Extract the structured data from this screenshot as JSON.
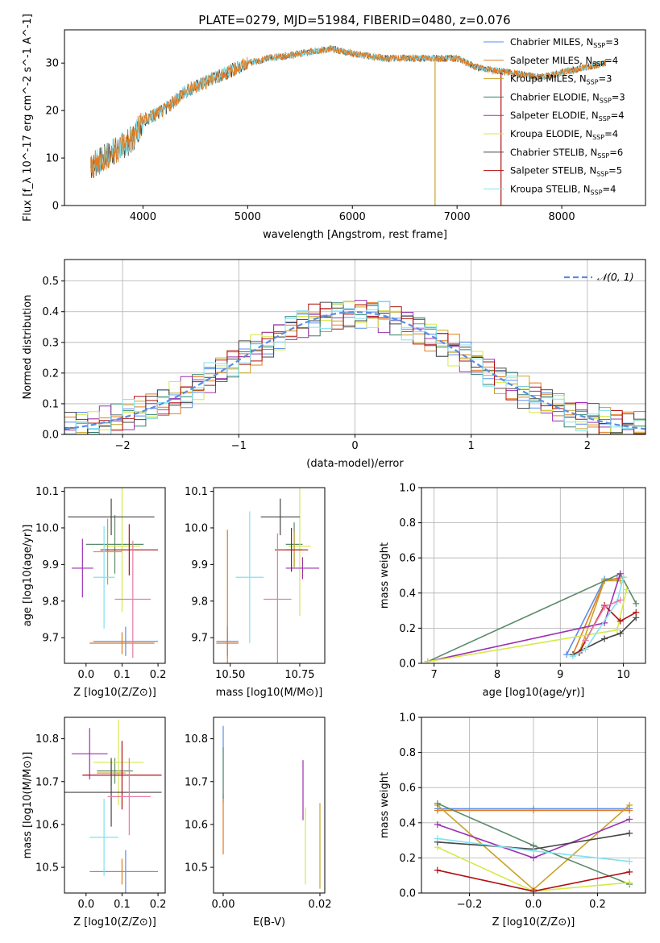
{
  "page_title": "PLATE=0279, MJD=51984, FIBERID=0480, z=0.076",
  "colors": {
    "c1": "#5b8def",
    "c2": "#e07b20",
    "c3": "#c9a227",
    "c4": "#2f7f6f",
    "c5": "#9b30b0",
    "c6": "#d6e84a",
    "c7": "#444444",
    "c8": "#b01010",
    "c9": "#7fe3f0",
    "grid": "#b0b0b0",
    "gauss": "#5b8ddf",
    "pink": "#e87aa8",
    "green": "#5a8a6a"
  },
  "chart_data": [
    {
      "type": "line",
      "title": "PLATE=0279, MJD=51984, FIBERID=0480, z=0.076",
      "xlabel": "wavelength [Angstrom, rest frame]",
      "ylabel": "Flux [f_λ 10^-17 erg cm^-2 s^-1 A^-1]",
      "xlim": [
        3250,
        8800
      ],
      "ylim": [
        0,
        37
      ],
      "xticks": [
        "4000",
        "5000",
        "6000",
        "7000",
        "8000"
      ],
      "yticks": [
        "0",
        "10",
        "20",
        "30"
      ],
      "grid": false,
      "legend_position": "top-right",
      "spectrum_x": [
        3500,
        3700,
        3900,
        4000,
        4200,
        4400,
        4600,
        4800,
        5000,
        5200,
        5500,
        5800,
        6000,
        6300,
        6600,
        7000,
        7200,
        7500,
        7800,
        8000,
        8200,
        8400
      ],
      "spectrum_y": [
        8,
        11,
        14,
        18,
        20,
        24,
        26,
        28,
        30,
        31,
        32,
        33,
        32,
        31,
        31,
        31,
        29,
        28,
        27,
        28,
        29,
        30
      ],
      "series": [
        {
          "name": "Chabrier MILES, N",
          "sub": "SSP",
          "suffix": "=3"
        },
        {
          "name": "Salpeter MILES, N",
          "sub": "SSP",
          "suffix": "=4"
        },
        {
          "name": "Kroupa MILES, N",
          "sub": "SSP",
          "suffix": "=3"
        },
        {
          "name": "Chabrier ELODIE, N",
          "sub": "SSP",
          "suffix": "=3"
        },
        {
          "name": "Salpeter ELODIE, N",
          "sub": "SSP",
          "suffix": "=4"
        },
        {
          "name": "Kroupa ELODIE, N",
          "sub": "SSP",
          "suffix": "=4"
        },
        {
          "name": "Chabrier STELIB, N",
          "sub": "SSP",
          "suffix": "=6"
        },
        {
          "name": "Salpeter STELIB, N",
          "sub": "SSP",
          "suffix": "=5"
        },
        {
          "name": "Kroupa STELIB, N",
          "sub": "SSP",
          "suffix": "=4"
        }
      ]
    },
    {
      "type": "area",
      "xlabel": "(data-model)/error",
      "ylabel": "Normed distribution",
      "xlim": [
        -2.5,
        2.5
      ],
      "ylim": [
        0,
        0.57
      ],
      "xticks": [
        "−2",
        "−1",
        "0",
        "1",
        "2"
      ],
      "yticks": [
        "0.0",
        "0.1",
        "0.2",
        "0.3",
        "0.4",
        "0.5"
      ],
      "grid": true,
      "legend_position": "top-right",
      "legend_label": "𝒩(0, 1)"
    },
    {
      "type": "scatter",
      "xlabel": "Z [log10(Z/Z⊙)]",
      "ylabel": "age [log10(age/yr)]",
      "xlim": [
        -0.06,
        0.22
      ],
      "ylim": [
        9.63,
        10.11
      ],
      "xticks": [
        "0.0",
        "0.1",
        "0.2"
      ],
      "yticks": [
        "9.7",
        "9.8",
        "9.9",
        "10.0",
        "10.1"
      ],
      "points": [
        {
          "x": 0.11,
          "y": 9.69,
          "xerr": 0.09,
          "yerr": 0.04
        },
        {
          "x": 0.1,
          "y": 9.685,
          "xerr": 0.09,
          "yerr": 0.03
        },
        {
          "x": 0.08,
          "y": 9.955,
          "xerr": 0.08,
          "yerr": 0.08
        },
        {
          "x": 0.1,
          "y": 9.95,
          "xerr": 0.05,
          "yerr": 0.18
        },
        {
          "x": -0.01,
          "y": 9.89,
          "xerr": 0.03,
          "yerr": 0.08
        },
        {
          "x": 0.06,
          "y": 9.935,
          "xerr": 0.04,
          "yerr": 0.09
        },
        {
          "x": 0.07,
          "y": 10.03,
          "xerr": 0.12,
          "yerr": 0.05
        },
        {
          "x": 0.12,
          "y": 9.94,
          "xerr": 0.08,
          "yerr": 0.07
        },
        {
          "x": 0.05,
          "y": 9.865,
          "xerr": 0.03,
          "yerr": 0.14
        },
        {
          "x": 0.13,
          "y": 9.805,
          "xerr": 0.05,
          "yerr": 0.16
        }
      ]
    },
    {
      "type": "scatter",
      "xlabel": "mass [log10(M/M⊙)]",
      "ylabel": "",
      "xlim": [
        10.44,
        10.84
      ],
      "ylim": [
        9.63,
        10.11
      ],
      "xticks": [
        "10.50",
        "10.75"
      ],
      "yticks": [
        "9.7",
        "9.8",
        "9.9",
        "10.0",
        "10.1"
      ],
      "points": [
        {
          "x": 10.49,
          "y": 9.69,
          "xerr": 0.04,
          "yerr": 0.04
        },
        {
          "x": 10.49,
          "y": 9.685,
          "xerr": 0.04,
          "yerr": 0.31
        },
        {
          "x": 10.73,
          "y": 9.955,
          "xerr": 0.03,
          "yerr": 0.06
        },
        {
          "x": 10.75,
          "y": 9.95,
          "xerr": 0.04,
          "yerr": 0.19
        },
        {
          "x": 10.76,
          "y": 9.89,
          "xerr": 0.06,
          "yerr": 0.03
        },
        {
          "x": 10.73,
          "y": 9.94,
          "xerr": 0.03,
          "yerr": 0.05
        },
        {
          "x": 10.68,
          "y": 10.03,
          "xerr": 0.07,
          "yerr": 0.05
        },
        {
          "x": 10.72,
          "y": 9.94,
          "xerr": 0.06,
          "yerr": 0.06
        },
        {
          "x": 10.57,
          "y": 9.865,
          "xerr": 0.05,
          "yerr": 0.18
        },
        {
          "x": 10.67,
          "y": 9.805,
          "xerr": 0.05,
          "yerr": 0.18
        }
      ]
    },
    {
      "type": "line",
      "xlabel": "age [log10(age/yr)]",
      "ylabel": "mass weight",
      "xlim": [
        6.8,
        10.35
      ],
      "ylim": [
        0,
        1
      ],
      "xticks": [
        "7",
        "8",
        "9",
        "10"
      ],
      "yticks": [
        "0.0",
        "0.2",
        "0.4",
        "0.6",
        "0.8",
        "1.0"
      ],
      "grid": true,
      "series": [
        {
          "x": [
            9.1,
            9.7,
            9.9
          ],
          "y": [
            0.05,
            0.48,
            0.48
          ]
        },
        {
          "x": [
            9.2,
            9.7,
            10.0
          ],
          "y": [
            0.05,
            0.47,
            0.49
          ]
        },
        {
          "x": [
            9.3,
            9.7,
            9.95
          ],
          "y": [
            0.06,
            0.47,
            0.47
          ]
        },
        {
          "x": [
            6.9,
            9.95,
            10.2
          ],
          "y": [
            0.01,
            0.51,
            0.34
          ]
        },
        {
          "x": [
            6.9,
            9.7,
            9.95
          ],
          "y": [
            0.01,
            0.23,
            0.51
          ]
        },
        {
          "x": [
            6.9,
            9.9,
            10.05
          ],
          "y": [
            0.01,
            0.19,
            0.42
          ]
        },
        {
          "x": [
            9.2,
            9.7,
            9.95,
            10.2
          ],
          "y": [
            0.05,
            0.14,
            0.17,
            0.26
          ]
        },
        {
          "x": [
            9.3,
            9.7,
            9.95,
            10.2
          ],
          "y": [
            0.06,
            0.33,
            0.24,
            0.29
          ]
        },
        {
          "x": [
            9.2,
            9.4,
            9.9,
            10.0
          ],
          "y": [
            0.04,
            0.08,
            0.35,
            0.49
          ]
        },
        {
          "x": [
            9.4,
            9.7,
            9.95
          ],
          "y": [
            0.13,
            0.32,
            0.36
          ]
        }
      ]
    },
    {
      "type": "scatter",
      "xlabel": "Z [log10(Z/Z⊙)]",
      "ylabel": "mass [log10(M/M⊙)]",
      "xlim": [
        -0.06,
        0.22
      ],
      "ylim": [
        10.44,
        10.85
      ],
      "xticks": [
        "0.0",
        "0.1",
        "0.2"
      ],
      "yticks": [
        "10.5",
        "10.6",
        "10.7",
        "10.8"
      ],
      "points": [
        {
          "x": 0.11,
          "y": 10.49,
          "xerr": 0.09,
          "yerr": 0.05
        },
        {
          "x": 0.1,
          "y": 10.49,
          "xerr": 0.09,
          "yerr": 0.03
        },
        {
          "x": 0.08,
          "y": 10.725,
          "xerr": 0.05,
          "yerr": 0.03
        },
        {
          "x": 0.09,
          "y": 10.745,
          "xerr": 0.07,
          "yerr": 0.1
        },
        {
          "x": 0.01,
          "y": 10.765,
          "xerr": 0.05,
          "yerr": 0.06
        },
        {
          "x": 0.07,
          "y": 10.72,
          "xerr": 0.04,
          "yerr": 0.03
        },
        {
          "x": 0.07,
          "y": 10.675,
          "xerr": 0.14,
          "yerr": 0.08
        },
        {
          "x": 0.1,
          "y": 10.715,
          "xerr": 0.11,
          "yerr": 0.08
        },
        {
          "x": 0.05,
          "y": 10.57,
          "xerr": 0.04,
          "yerr": 0.09
        },
        {
          "x": 0.12,
          "y": 10.665,
          "xerr": 0.06,
          "yerr": 0.09
        }
      ]
    },
    {
      "type": "scatter",
      "xlabel": "E(B-V)",
      "ylabel": "",
      "xlim": [
        -0.002,
        0.021
      ],
      "ylim": [
        10.44,
        10.85
      ],
      "xticks": [
        "0.00",
        "0.02"
      ],
      "yticks": [
        "10.5",
        "10.6",
        "10.7",
        "10.8"
      ],
      "points": [
        {
          "x": 0.0,
          "y": 10.74,
          "xerr": 0,
          "yerr": 0.09
        },
        {
          "x": 0.0,
          "y": 10.6,
          "xerr": 0,
          "yerr": 0.07
        },
        {
          "x": 0.0,
          "y": 10.72,
          "xerr": 0,
          "yerr": 0.06
        },
        {
          "x": 0.017,
          "y": 10.55,
          "xerr": 0,
          "yerr": 0.09
        },
        {
          "x": 0.0165,
          "y": 10.68,
          "xerr": 0,
          "yerr": 0.07
        },
        {
          "x": 0.02,
          "y": 10.55,
          "xerr": 0,
          "yerr": 0.1
        }
      ]
    },
    {
      "type": "line",
      "xlabel": "Z [log10(Z/Z⊙)]",
      "ylabel": "mass weight",
      "xlim": [
        -0.35,
        0.35
      ],
      "ylim": [
        0,
        1
      ],
      "xticks": [
        "−0.2",
        "0.0",
        "0.2"
      ],
      "yticks": [
        "0.0",
        "0.2",
        "0.4",
        "0.6",
        "0.8",
        "1.0"
      ],
      "grid": true,
      "series": [
        {
          "x": [
            -0.3,
            0.0,
            0.3
          ],
          "y": [
            0.48,
            0.48,
            0.48
          ]
        },
        {
          "x": [
            -0.3,
            0.0,
            0.3
          ],
          "y": [
            0.47,
            0.47,
            0.47
          ]
        },
        {
          "x": [
            -0.3,
            0.0,
            0.3
          ],
          "y": [
            0.5,
            0.02,
            0.5
          ]
        },
        {
          "x": [
            -0.3,
            0.0,
            0.3
          ],
          "y": [
            0.51,
            0.27,
            0.05
          ]
        },
        {
          "x": [
            -0.3,
            0.0,
            0.3
          ],
          "y": [
            0.39,
            0.2,
            0.42
          ]
        },
        {
          "x": [
            -0.3,
            0.0,
            0.3
          ],
          "y": [
            0.26,
            0.01,
            0.06
          ]
        },
        {
          "x": [
            -0.3,
            0.0,
            0.3
          ],
          "y": [
            0.29,
            0.25,
            0.34
          ]
        },
        {
          "x": [
            -0.3,
            0.0,
            0.3
          ],
          "y": [
            0.13,
            0.01,
            0.12
          ]
        },
        {
          "x": [
            -0.3,
            0.0,
            0.3
          ],
          "y": [
            0.31,
            0.24,
            0.18
          ]
        }
      ]
    }
  ]
}
